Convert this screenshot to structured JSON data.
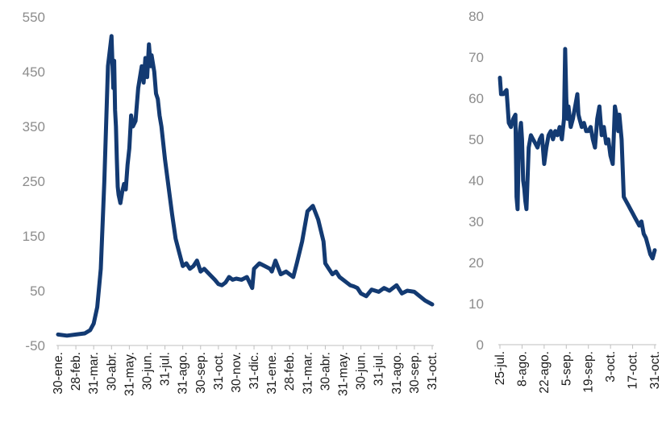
{
  "chart_data": [
    {
      "type": "line",
      "title": "",
      "xlabel": "",
      "ylabel": "",
      "ylim": [
        -50,
        550
      ],
      "yticks": [
        "550",
        "450",
        "350",
        "250",
        "150",
        "50",
        "-50"
      ],
      "ytick_values": [
        550,
        450,
        350,
        250,
        150,
        50,
        -50
      ],
      "categories": [
        "30-ene.",
        "28-feb.",
        "31-mar.",
        "30-abr.",
        "31-may.",
        "30-jun.",
        "31-jul.",
        "31-ago.",
        "30-sep.",
        "31-oct.",
        "30-nov.",
        "31-dic.",
        "31-ene.",
        "28-feb.",
        "31-mar.",
        "30-abr.",
        "31-may.",
        "30-jun.",
        "31-jul.",
        "31-ago.",
        "30-sep.",
        "31-oct."
      ],
      "grid": false,
      "series": [
        {
          "x": [
            0,
            0.5,
            1.0,
            1.5,
            1.8,
            2.0,
            2.2,
            2.4,
            2.6,
            2.8,
            3.0,
            3.1,
            3.15,
            3.2,
            3.25,
            3.3,
            3.35,
            3.4,
            3.5,
            3.6,
            3.7,
            3.8,
            3.9,
            4.0,
            4.1,
            4.2,
            4.35,
            4.5,
            4.7,
            4.8,
            4.9,
            5.0,
            5.1,
            5.2,
            5.25,
            5.3,
            5.4,
            5.5,
            5.6,
            5.7,
            5.8,
            5.9,
            6.0,
            6.2,
            6.4,
            6.6,
            6.8,
            7.0,
            7.2,
            7.4,
            7.6,
            7.8,
            8.0,
            8.2,
            8.5,
            8.8,
            9.0,
            9.2,
            9.4,
            9.6,
            9.8,
            10.0,
            10.3,
            10.6,
            10.9,
            11.0,
            11.3,
            11.6,
            11.9,
            12.0,
            12.2,
            12.5,
            12.8,
            13.0,
            13.2,
            13.4,
            13.7,
            14.0,
            14.3,
            14.6,
            14.9,
            15.0,
            15.2,
            15.4,
            15.6,
            15.8,
            16.0,
            16.2,
            16.4,
            16.6,
            16.8,
            17.0,
            17.3,
            17.6,
            18.0,
            18.3,
            18.6,
            19.0,
            19.3,
            19.6,
            20.0,
            20.3,
            20.6,
            21.0
          ],
          "values": [
            -30,
            -32,
            -30,
            -28,
            -22,
            -10,
            20,
            90,
            250,
            460,
            515,
            420,
            470,
            380,
            350,
            290,
            240,
            225,
            210,
            230,
            245,
            235,
            280,
            310,
            370,
            350,
            360,
            420,
            460,
            430,
            475,
            440,
            500,
            460,
            480,
            470,
            450,
            410,
            400,
            370,
            350,
            320,
            290,
            240,
            190,
            145,
            120,
            95,
            100,
            90,
            95,
            105,
            85,
            90,
            80,
            70,
            62,
            60,
            65,
            75,
            70,
            72,
            70,
            75,
            55,
            90,
            100,
            95,
            90,
            85,
            105,
            80,
            85,
            80,
            75,
            100,
            140,
            195,
            205,
            180,
            140,
            100,
            90,
            80,
            85,
            75,
            70,
            65,
            60,
            58,
            55,
            45,
            40,
            52,
            48,
            55,
            50,
            60,
            45,
            50,
            48,
            40,
            32,
            25
          ]
        }
      ]
    },
    {
      "type": "line",
      "title": "",
      "xlabel": "",
      "ylabel": "",
      "ylim": [
        0,
        80
      ],
      "yticks": [
        "80",
        "70",
        "60",
        "50",
        "40",
        "30",
        "20",
        "10",
        "0"
      ],
      "ytick_values": [
        80,
        70,
        60,
        50,
        40,
        30,
        20,
        10,
        0
      ],
      "categories": [
        "25-jul.",
        "8-ago.",
        "22-ago.",
        "5-sep.",
        "19-sep.",
        "3-oct.",
        "17-oct.",
        "31-oct."
      ],
      "grid": false,
      "series": [
        {
          "x": [
            0,
            0.05,
            0.15,
            0.3,
            0.4,
            0.5,
            0.6,
            0.7,
            0.75,
            0.8,
            0.85,
            0.9,
            0.95,
            1.0,
            1.05,
            1.1,
            1.15,
            1.2,
            1.3,
            1.4,
            1.5,
            1.6,
            1.7,
            1.8,
            1.9,
            2.0,
            2.1,
            2.2,
            2.3,
            2.4,
            2.5,
            2.6,
            2.7,
            2.8,
            2.9,
            2.95,
            3.0,
            3.05,
            3.1,
            3.2,
            3.3,
            3.4,
            3.5,
            3.55,
            3.6,
            3.7,
            3.8,
            3.9,
            4.0,
            4.1,
            4.2,
            4.3,
            4.4,
            4.5,
            4.6,
            4.7,
            4.8,
            4.9,
            5.0,
            5.1,
            5.2,
            5.3,
            5.35,
            5.4,
            5.5,
            5.6,
            5.7,
            5.8,
            5.9,
            6.0,
            6.1,
            6.2,
            6.3,
            6.4,
            6.5,
            6.6,
            6.7,
            6.8,
            6.9,
            7.0
          ],
          "values": [
            65,
            61,
            61,
            62,
            54,
            53,
            55,
            56,
            36,
            33,
            48,
            52,
            54,
            50,
            40,
            38,
            35,
            33,
            48,
            51,
            50,
            49,
            48,
            50,
            51,
            44,
            48,
            51,
            52,
            50,
            52,
            51,
            53,
            50,
            55,
            72,
            60,
            55,
            58,
            53,
            55,
            58,
            61,
            56,
            55,
            53,
            54,
            52,
            52,
            53,
            50,
            48,
            55,
            58,
            51,
            53,
            49,
            50,
            46,
            44,
            58,
            55,
            52,
            56,
            50,
            36,
            35,
            34,
            33,
            32,
            31,
            30,
            29,
            30,
            27,
            26,
            24,
            22,
            21,
            23
          ]
        }
      ]
    }
  ]
}
